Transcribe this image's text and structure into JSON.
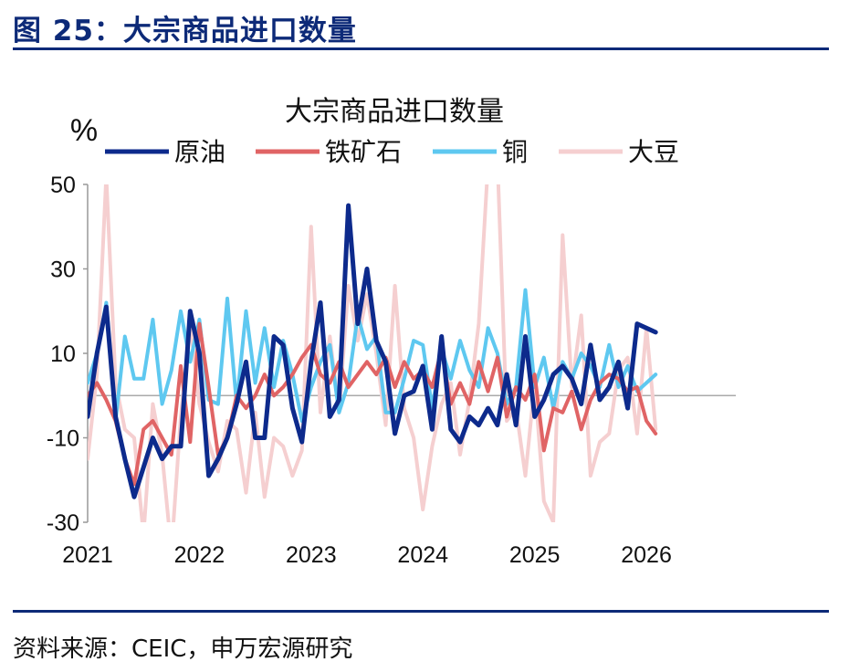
{
  "figure_title": "图 25：大宗商品进口数量",
  "source": "资料来源：CEIC，申万宏源研究",
  "chart_data": {
    "type": "line",
    "title": "大宗商品进口数量",
    "ylabel": "%",
    "ylim": [
      -30,
      50
    ],
    "yticks": [
      50,
      30,
      10,
      -10,
      -30
    ],
    "xlim": [
      2021,
      2026.8
    ],
    "xticks": [
      "2021",
      "2022",
      "2023",
      "2024",
      "2025",
      "2026"
    ],
    "zero_line": true,
    "legend_position": "top",
    "series": [
      {
        "name": "原油",
        "color": "#0d2a8c",
        "x": [
          2021.0,
          2021.083,
          2021.167,
          2021.25,
          2021.333,
          2021.417,
          2021.5,
          2021.583,
          2021.667,
          2021.75,
          2021.833,
          2021.917,
          2022.0,
          2022.083,
          2022.167,
          2022.25,
          2022.333,
          2022.417,
          2022.5,
          2022.583,
          2022.667,
          2022.75,
          2022.833,
          2022.917,
          2023.0,
          2023.083,
          2023.167,
          2023.25,
          2023.333,
          2023.417,
          2023.5,
          2023.583,
          2023.667,
          2023.75,
          2023.833,
          2023.917,
          2024.0,
          2024.083,
          2024.167,
          2024.25,
          2024.333,
          2024.417,
          2024.5,
          2024.583,
          2024.667,
          2024.75,
          2024.833,
          2024.917,
          2025.0,
          2025.083,
          2025.167,
          2025.25,
          2025.333,
          2025.417,
          2025.5,
          2025.583,
          2025.667,
          2025.75,
          2025.833,
          2025.917,
          2026.0,
          2026.083
        ],
        "y": [
          -5,
          10,
          21,
          -5,
          -15,
          -24,
          -17,
          -10,
          -15,
          -12,
          -12,
          20,
          10,
          -19,
          -15,
          -10,
          -2,
          8,
          -10,
          -10,
          14,
          12,
          -3,
          -11,
          8,
          22,
          -5,
          -1,
          45,
          17,
          30,
          13,
          8,
          -9,
          0,
          1,
          7,
          -8,
          14,
          -8,
          -11,
          -5,
          -7,
          -3,
          -7,
          5,
          -7,
          14,
          -5,
          -1,
          5,
          7,
          4,
          -2,
          12,
          -1,
          2,
          8,
          -3,
          17,
          16,
          15
        ],
        "stroke_width": 5
      },
      {
        "name": "铁矿石",
        "color": "#e06465",
        "x": [
          2021.0,
          2021.083,
          2021.167,
          2021.25,
          2021.333,
          2021.417,
          2021.5,
          2021.583,
          2021.667,
          2021.75,
          2021.833,
          2021.917,
          2022.0,
          2022.083,
          2022.167,
          2022.25,
          2022.333,
          2022.417,
          2022.5,
          2022.583,
          2022.667,
          2022.75,
          2022.833,
          2022.917,
          2023.0,
          2023.083,
          2023.167,
          2023.25,
          2023.333,
          2023.417,
          2023.5,
          2023.583,
          2023.667,
          2023.75,
          2023.833,
          2023.917,
          2024.0,
          2024.083,
          2024.167,
          2024.25,
          2024.333,
          2024.417,
          2024.5,
          2024.583,
          2024.667,
          2024.75,
          2024.833,
          2024.917,
          2025.0,
          2025.083,
          2025.167,
          2025.25,
          2025.333,
          2025.417,
          2025.5,
          2025.583,
          2025.667,
          2025.75,
          2025.833,
          2025.917,
          2026.0,
          2026.083
        ],
        "y": [
          0,
          3,
          -1,
          -6,
          -15,
          -21,
          -8,
          -6,
          -10,
          -14,
          7,
          -11,
          17,
          2,
          -14,
          -10,
          0,
          -3,
          0,
          5,
          0,
          2,
          5,
          9,
          12,
          5,
          3,
          8,
          2,
          5,
          8,
          5,
          9,
          2,
          8,
          4,
          6,
          2,
          11,
          -2,
          3,
          -2,
          8,
          1,
          9,
          -5,
          2,
          -1,
          5,
          -13,
          -3,
          -4,
          1,
          -8,
          -1,
          3,
          5,
          4,
          1,
          2,
          -6,
          -9
        ]
      },
      {
        "name": "铜",
        "color": "#5ec8f0",
        "x": [
          2021.0,
          2021.083,
          2021.167,
          2021.25,
          2021.333,
          2021.417,
          2021.5,
          2021.583,
          2021.667,
          2021.75,
          2021.833,
          2021.917,
          2022.0,
          2022.083,
          2022.167,
          2022.25,
          2022.333,
          2022.417,
          2022.5,
          2022.583,
          2022.667,
          2022.75,
          2022.833,
          2022.917,
          2023.0,
          2023.083,
          2023.167,
          2023.25,
          2023.333,
          2023.417,
          2023.5,
          2023.583,
          2023.667,
          2023.75,
          2023.833,
          2023.917,
          2024.0,
          2024.083,
          2024.167,
          2024.25,
          2024.333,
          2024.417,
          2024.5,
          2024.583,
          2024.667,
          2024.75,
          2024.833,
          2024.917,
          2025.0,
          2025.083,
          2025.167,
          2025.25,
          2025.333,
          2025.417,
          2025.5,
          2025.583,
          2025.667,
          2025.75,
          2025.833,
          2025.917,
          2026.0,
          2026.083
        ],
        "y": [
          3,
          10,
          22,
          -6,
          14,
          4,
          4,
          18,
          -2,
          6,
          20,
          8,
          18,
          -1,
          -2,
          23,
          -2,
          20,
          3,
          16,
          2,
          13,
          5,
          -6,
          2,
          8,
          12,
          -4,
          3,
          19,
          11,
          14,
          -4,
          -4,
          4,
          13,
          12,
          -3,
          11,
          4,
          13,
          6,
          2,
          16,
          10,
          -2,
          2,
          25,
          2,
          9,
          -3,
          8,
          4,
          10,
          7,
          2,
          12,
          2,
          7,
          1,
          3,
          5
        ]
      },
      {
        "name": "大豆",
        "color": "#f5cfd0",
        "x": [
          2021.0,
          2021.083,
          2021.167,
          2021.25,
          2021.333,
          2021.417,
          2021.5,
          2021.583,
          2021.667,
          2021.75,
          2021.833,
          2021.917,
          2022.0,
          2022.083,
          2022.167,
          2022.25,
          2022.333,
          2022.417,
          2022.5,
          2022.583,
          2022.667,
          2022.75,
          2022.833,
          2022.917,
          2023.0,
          2023.083,
          2023.167,
          2023.25,
          2023.333,
          2023.417,
          2023.5,
          2023.583,
          2023.667,
          2023.75,
          2023.833,
          2023.917,
          2024.0,
          2024.083,
          2024.167,
          2024.25,
          2024.333,
          2024.417,
          2024.5,
          2024.583,
          2024.667,
          2024.75,
          2024.833,
          2024.917,
          2025.0,
          2025.083,
          2025.167,
          2025.25,
          2025.333,
          2025.417,
          2025.5,
          2025.583,
          2025.667,
          2025.75,
          2025.833,
          2025.917,
          2026.0,
          2026.083
        ],
        "y": [
          -15,
          5,
          52,
          3,
          -8,
          -10,
          -33,
          -2,
          -14,
          -37,
          -5,
          17,
          -2,
          -11,
          -18,
          -6,
          -8,
          -23,
          -4,
          -24,
          -10,
          -12,
          -19,
          -13,
          40,
          -4,
          14,
          -4,
          26,
          13,
          24,
          10,
          -7,
          26,
          -3,
          -10,
          -27,
          -12,
          -2,
          3,
          -14,
          -1,
          17,
          55,
          56,
          -6,
          -3,
          -19,
          3,
          -25,
          -30,
          38,
          2,
          19,
          -19,
          -11,
          -9,
          6,
          9,
          -9,
          16,
          -8
        ]
      }
    ]
  }
}
